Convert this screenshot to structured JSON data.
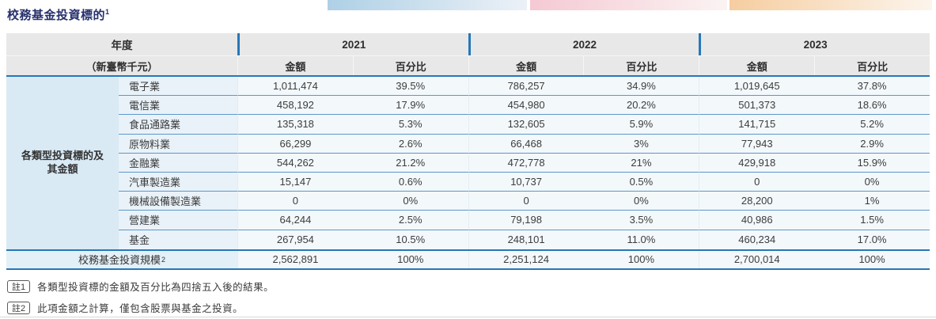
{
  "title": {
    "text": "校務基金投資標的",
    "superscript": "1"
  },
  "colors": {
    "accent_blue": "#2777b8",
    "row_separator_blue": "#5e97c8",
    "header_gray": "#e8e8e8",
    "group_cell_blue": "#d9eaf5",
    "strip_blue": "#aed0e6",
    "strip_pink": "#f5c9d4",
    "strip_orange": "#f6cda0",
    "title_navy": "#27306c"
  },
  "table": {
    "header": {
      "row_label_title": "年度",
      "unit_label": "（新臺幣千元）",
      "years": [
        "2021",
        "2022",
        "2023"
      ],
      "amount_label": "金額",
      "percent_label": "百分比"
    },
    "group_label": "各類型投資標的及\n其金額",
    "rows": [
      {
        "label": "電子業",
        "values": [
          "1,011,474",
          "39.5%",
          "786,257",
          "34.9%",
          "1,019,645",
          "37.8%"
        ]
      },
      {
        "label": "電信業",
        "values": [
          "458,192",
          "17.9%",
          "454,980",
          "20.2%",
          "501,373",
          "18.6%"
        ]
      },
      {
        "label": "食品通路業",
        "values": [
          "135,318",
          "5.3%",
          "132,605",
          "5.9%",
          "141,715",
          "5.2%"
        ]
      },
      {
        "label": "原物料業",
        "values": [
          "66,299",
          "2.6%",
          "66,468",
          "3%",
          "77,943",
          "2.9%"
        ]
      },
      {
        "label": "金融業",
        "values": [
          "544,262",
          "21.2%",
          "472,778",
          "21%",
          "429,918",
          "15.9%"
        ]
      },
      {
        "label": "汽車製造業",
        "values": [
          "15,147",
          "0.6%",
          "10,737",
          "0.5%",
          "0",
          "0%"
        ]
      },
      {
        "label": "機械設備製造業",
        "values": [
          "0",
          "0%",
          "0",
          "0%",
          "28,200",
          "1%"
        ]
      },
      {
        "label": "營建業",
        "values": [
          "64,244",
          "2.5%",
          "79,198",
          "3.5%",
          "40,986",
          "1.5%"
        ]
      },
      {
        "label": "基金",
        "values": [
          "267,954",
          "10.5%",
          "248,101",
          "11.0%",
          "460,234",
          "17.0%"
        ]
      }
    ],
    "total": {
      "label": "校務基金投資規模",
      "superscript": "2",
      "values": [
        "2,562,891",
        "100%",
        "2,251,124",
        "100%",
        "2,700,014",
        "100%"
      ]
    }
  },
  "footnotes": [
    {
      "badge": "註1",
      "text": "各類型投資標的金額及百分比為四捨五入後的結果。"
    },
    {
      "badge": "註2",
      "text": "此項金額之計算，僅包含股票與基金之投資。"
    }
  ]
}
